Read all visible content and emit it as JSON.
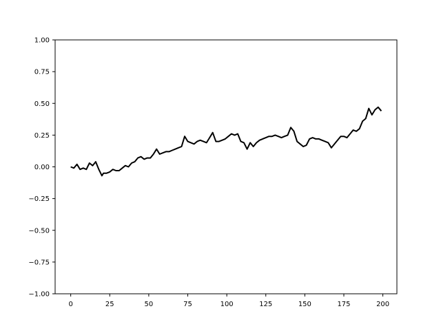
{
  "chart_data": {
    "type": "line",
    "title": "",
    "xlabel": "",
    "ylabel": "",
    "xlim": [
      -10,
      209
    ],
    "ylim": [
      -1.0,
      1.0
    ],
    "grid": false,
    "x_ticks": [
      0,
      25,
      50,
      75,
      100,
      125,
      150,
      175,
      200
    ],
    "x_tick_labels": [
      "0",
      "25",
      "50",
      "75",
      "100",
      "125",
      "150",
      "175",
      "200"
    ],
    "y_ticks": [
      -1.0,
      -0.75,
      -0.5,
      -0.25,
      0.0,
      0.25,
      0.5,
      0.75,
      1.0
    ],
    "y_tick_labels": [
      "−1.00",
      "−0.75",
      "−0.50",
      "−0.25",
      "0.00",
      "0.25",
      "0.50",
      "0.75",
      "1.00"
    ],
    "series": [
      {
        "color": "#000000",
        "x": [
          0,
          2,
          4,
          6,
          8,
          10,
          12,
          14,
          16,
          18,
          20,
          21,
          23,
          25,
          27,
          29,
          31,
          33,
          35,
          37,
          39,
          41,
          43,
          45,
          47,
          49,
          51,
          53,
          55,
          57,
          59,
          61,
          63,
          65,
          67,
          69,
          71,
          73,
          75,
          77,
          79,
          81,
          83,
          85,
          87,
          89,
          91,
          93,
          95,
          97,
          99,
          101,
          103,
          105,
          107,
          109,
          111,
          113,
          115,
          117,
          119,
          121,
          123,
          125,
          127,
          129,
          131,
          133,
          135,
          137,
          139,
          141,
          143,
          145,
          147,
          149,
          151,
          153,
          155,
          157,
          159,
          161,
          163,
          165,
          167,
          169,
          171,
          173,
          175,
          177,
          179,
          181,
          183,
          185,
          187,
          189,
          191,
          193,
          195,
          197,
          199
        ],
        "y": [
          0.0,
          -0.01,
          0.02,
          -0.02,
          -0.01,
          -0.02,
          0.03,
          0.01,
          0.04,
          -0.02,
          -0.07,
          -0.05,
          -0.05,
          -0.04,
          -0.02,
          -0.03,
          -0.03,
          -0.01,
          0.01,
          0.0,
          0.03,
          0.04,
          0.07,
          0.08,
          0.06,
          0.07,
          0.07,
          0.1,
          0.14,
          0.1,
          0.11,
          0.12,
          0.12,
          0.13,
          0.14,
          0.15,
          0.16,
          0.24,
          0.2,
          0.19,
          0.18,
          0.2,
          0.21,
          0.2,
          0.19,
          0.23,
          0.27,
          0.2,
          0.2,
          0.21,
          0.22,
          0.24,
          0.26,
          0.25,
          0.26,
          0.2,
          0.19,
          0.14,
          0.19,
          0.16,
          0.19,
          0.21,
          0.22,
          0.23,
          0.24,
          0.24,
          0.25,
          0.24,
          0.23,
          0.24,
          0.25,
          0.31,
          0.28,
          0.2,
          0.18,
          0.16,
          0.17,
          0.22,
          0.23,
          0.22,
          0.22,
          0.21,
          0.2,
          0.19,
          0.15,
          0.18,
          0.21,
          0.24,
          0.24,
          0.23,
          0.26,
          0.29,
          0.28,
          0.3,
          0.36,
          0.38,
          0.46,
          0.41,
          0.45,
          0.47,
          0.44
        ]
      }
    ]
  }
}
